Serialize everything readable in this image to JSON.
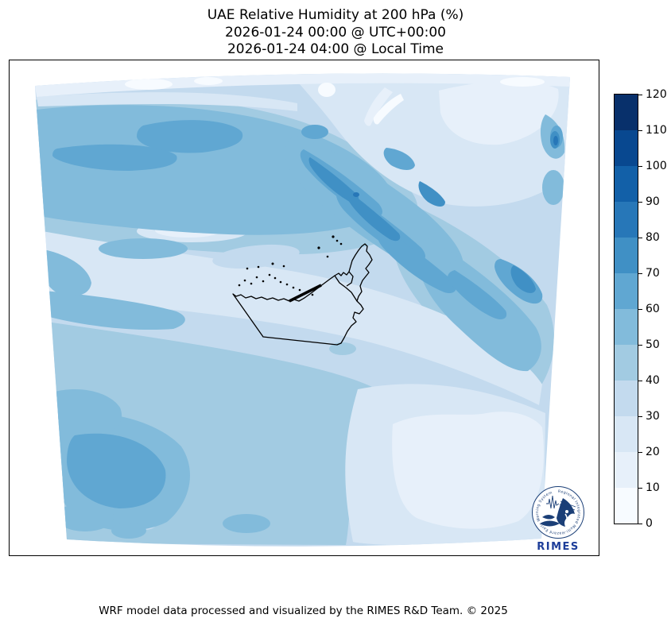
{
  "title": {
    "line1": "UAE Relative Humidity at 200 hPa (%)",
    "line2": "2026-01-24 00:00 @ UTC+00:00",
    "line3": "2026-01-24 04:00 @ Local Time"
  },
  "colorbar": {
    "min": 0,
    "max": 120,
    "step": 10,
    "tick_labels": [
      "0",
      "10",
      "20",
      "30",
      "40",
      "50",
      "60",
      "70",
      "80",
      "90",
      "100",
      "110",
      "120"
    ],
    "colors_low_to_high": [
      "#f7fbff",
      "#e7f0fa",
      "#d8e7f5",
      "#c3daee",
      "#a2cbe2",
      "#82bbdb",
      "#60a7d2",
      "#4090c5",
      "#2777b8",
      "#1260a8",
      "#084890",
      "#08306b"
    ]
  },
  "map": {
    "overlay_outline": "United Arab Emirates boundary",
    "outline_color": "#000000"
  },
  "logo": {
    "ring_text": "Regional Integrated Multi-Hazard Early Warning System",
    "wordmark": "RIMES",
    "primary_color": "#1b3f77",
    "wordmark_color": "#1d3d99"
  },
  "footer": {
    "credit": "WRF model data processed and visualized by the RIMES R&D Team. © 2025"
  },
  "chart_data": {
    "type": "heatmap",
    "title": "UAE Relative Humidity at 200 hPa (%)",
    "variable": "relative_humidity",
    "pressure_level_hPa": 200,
    "units": "%",
    "valid_time_utc": "2026-01-24 00:00 @ UTC+00:00",
    "valid_time_local": "2026-01-24 04:00 @ Local Time",
    "model": "WRF",
    "contour_levels": [
      0,
      10,
      20,
      30,
      40,
      50,
      60,
      70,
      80,
      90,
      100,
      110,
      120
    ],
    "colormap": "Blues",
    "legend_position": "right",
    "colorbar_range": [
      0,
      120
    ],
    "observed_value_range_percent": [
      0,
      90
    ],
    "features": [
      {
        "region": "far north edge strip",
        "rh_percent": "0-20"
      },
      {
        "region": "northwest horizontal band",
        "rh_percent": "50-70"
      },
      {
        "region": "north-central diagonal streaks (NW-SE)",
        "rh_percent": "60-80"
      },
      {
        "region": "upper-right sector",
        "rh_percent": "10-30"
      },
      {
        "region": "right edge small cores",
        "rh_percent": "70-90"
      },
      {
        "region": "center around UAE coastline",
        "rh_percent": "20-40"
      },
      {
        "region": "east-central blob",
        "rh_percent": "60-80"
      },
      {
        "region": "southwest blobs",
        "rh_percent": "50-70"
      },
      {
        "region": "southeast light patch",
        "rh_percent": "10-20"
      },
      {
        "region": "southern strip",
        "rh_percent": "30-50"
      }
    ],
    "overlay": "UAE administrative boundary with coastal islands"
  }
}
